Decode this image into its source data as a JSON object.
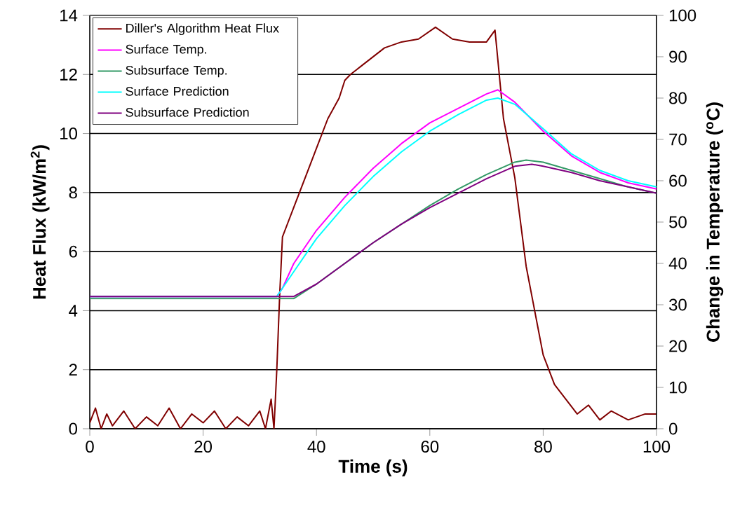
{
  "chart_data": {
    "type": "line",
    "xlabel": "Time (s)",
    "ylabel": "Heat Flux (kW/m$^{2}$)",
    "y2label": "Change in Temperature ($^{o}$C)",
    "xlim": [
      0,
      100
    ],
    "xticks": [
      0,
      20,
      40,
      60,
      80,
      100
    ],
    "ylim": [
      0,
      14
    ],
    "yticks": [
      0,
      2,
      4,
      6,
      8,
      10,
      12,
      14
    ],
    "y2lim": [
      0,
      100
    ],
    "y2ticks": [
      0,
      10,
      20,
      30,
      40,
      50,
      60,
      70,
      80,
      90,
      100
    ],
    "grid": "y",
    "legend": "top left",
    "marker": "none",
    "line_style": "solid",
    "series": [
      {
        "name": "Diller's Algorithm Heat Flux",
        "color": "#800000",
        "x": [
          0,
          1,
          2,
          3,
          4,
          6,
          8,
          10,
          12,
          14,
          16,
          18,
          20,
          22,
          24,
          26,
          28,
          30,
          31,
          32,
          32.5,
          33,
          33.5,
          34,
          35,
          36,
          38,
          40,
          42,
          44,
          45,
          46,
          48,
          50,
          52,
          55,
          58,
          61,
          64,
          67,
          70,
          71.5,
          72,
          73,
          74,
          75,
          76,
          77,
          78,
          79,
          80,
          82,
          84,
          86,
          88,
          90,
          92,
          95,
          98,
          100
        ],
        "values": [
          0.2,
          0.7,
          0,
          0.5,
          0.1,
          0.6,
          0,
          0.4,
          0.1,
          0.7,
          0,
          0.5,
          0.2,
          0.6,
          0,
          0.4,
          0.1,
          0.6,
          0,
          1,
          0,
          2,
          4.5,
          6.5,
          7,
          7.5,
          8.5,
          9.5,
          10.5,
          11.2,
          11.8,
          12,
          12.3,
          12.6,
          12.9,
          13.1,
          13.2,
          13.6,
          13.2,
          13.1,
          13.1,
          13.5,
          12.5,
          10.5,
          9.5,
          8.5,
          7,
          5.5,
          4.5,
          3.5,
          2.5,
          1.5,
          1,
          0.5,
          0.8,
          0.3,
          0.6,
          0.3,
          0.5,
          0.5
        ]
      },
      {
        "name": "Surface Temp.",
        "color": "#ff00ff",
        "axis": "y2",
        "x": [
          0,
          33,
          34,
          36,
          40,
          45,
          50,
          55,
          60,
          65,
          70,
          72,
          75,
          80,
          85,
          90,
          95,
          100
        ],
        "values": [
          32,
          32,
          34,
          40,
          48,
          56,
          63,
          69,
          74,
          77.5,
          81,
          82,
          79,
          72,
          66,
          62,
          59.5,
          58
        ]
      },
      {
        "name": "Subsurface Temp.",
        "color": "#339966",
        "axis": "y2",
        "x": [
          0,
          36,
          40,
          45,
          50,
          55,
          60,
          65,
          70,
          75,
          77,
          80,
          85,
          90,
          95,
          100
        ],
        "values": [
          31.5,
          31.5,
          35,
          40,
          45,
          49.5,
          54,
          58,
          61.5,
          64.5,
          65,
          64.5,
          62.5,
          60.5,
          58.5,
          57
        ]
      },
      {
        "name": "Surface Prediction",
        "color": "#00ffff",
        "axis": "y2",
        "x": [
          0,
          33,
          36,
          40,
          45,
          50,
          55,
          60,
          65,
          70,
          72,
          75,
          80,
          85,
          90,
          95,
          100
        ],
        "values": [
          32,
          32,
          38,
          46,
          54,
          61,
          67,
          72,
          76,
          79.5,
          80,
          78.5,
          72.6,
          66.5,
          62.5,
          60,
          58.5
        ]
      },
      {
        "name": "Subsurface Prediction",
        "color": "#800080",
        "axis": "y2",
        "x": [
          0,
          36,
          40,
          45,
          50,
          55,
          60,
          65,
          70,
          75,
          78,
          80,
          85,
          90,
          95,
          100
        ],
        "values": [
          32,
          32,
          35,
          40,
          45,
          49.5,
          53.5,
          57,
          60.5,
          63.5,
          64,
          63.5,
          62,
          60,
          58.5,
          57
        ]
      }
    ]
  }
}
